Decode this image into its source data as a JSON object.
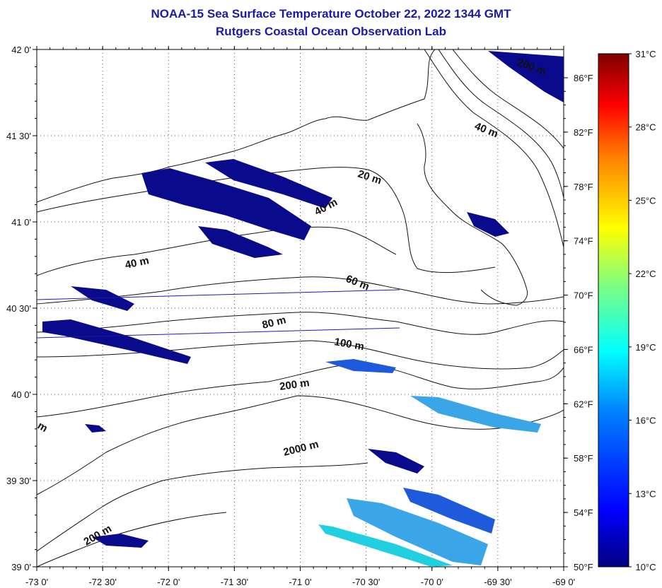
{
  "title": "NOAA-15 Sea Surface Temperature October 22, 2022 1344 GMT",
  "subtitle": "Rutgers Coastal Ocean Observation Lab",
  "lon_ticks": [
    "-73 0'",
    "-72 30'",
    "-72 0'",
    "-71 30'",
    "-71 0'",
    "-70 30'",
    "-70 0'",
    "-69 30'",
    "-69 0'"
  ],
  "lat_ticks": [
    "42 0'",
    "41 30'",
    "41 0'",
    "40 30'",
    "40 0'",
    "39 30'",
    "39 0'"
  ],
  "fahrenheit_ticks": [
    "86°F",
    "82°F",
    "78°F",
    "74°F",
    "70°F",
    "66°F",
    "62°F",
    "58°F",
    "54°F",
    "50°F"
  ],
  "celsius_ticks": [
    "31°C",
    "28°C",
    "25°C",
    "22°C",
    "19°C",
    "16°C",
    "13°C",
    "10°C"
  ],
  "contour_labels": [
    "20 m",
    "40 m",
    "40 m",
    "40 m",
    "60 m",
    "80 m",
    "100 m",
    "200 m",
    "2000 m",
    "200 m",
    "200 m",
    "m"
  ],
  "colors": {
    "title": "#1a1aa6",
    "cold": "#0a0a8c",
    "mid_blue": "#1e5adc",
    "light_blue": "#3aa6e8",
    "cyan": "#20d0e0"
  }
}
